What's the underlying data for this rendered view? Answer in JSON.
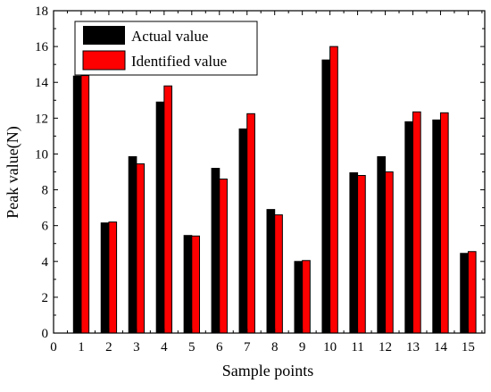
{
  "chart_data": {
    "type": "bar",
    "title": "",
    "xlabel": "Sample points",
    "ylabel": "Peak value(N)",
    "x_ticks": [
      "0",
      "1",
      "2",
      "3",
      "4",
      "5",
      "6",
      "7",
      "8",
      "9",
      "10",
      "11",
      "12",
      "13",
      "14",
      "15"
    ],
    "y_ticks": [
      "0",
      "2",
      "4",
      "6",
      "8",
      "10",
      "12",
      "14",
      "16",
      "18"
    ],
    "xlim": [
      0,
      15.6
    ],
    "ylim": [
      0,
      18
    ],
    "grid": false,
    "legend_position": "top-left",
    "categories": [
      1,
      2,
      3,
      4,
      5,
      6,
      7,
      8,
      9,
      10,
      11,
      12,
      13,
      14,
      15
    ],
    "series": [
      {
        "name": "Actual value",
        "color": "#000000",
        "values": [
          14.35,
          6.15,
          9.85,
          12.9,
          5.45,
          9.2,
          11.4,
          6.9,
          4.0,
          15.25,
          8.95,
          9.85,
          11.8,
          11.9,
          4.45
        ]
      },
      {
        "name": "Identified value",
        "color": "#ff0000",
        "values": [
          14.38,
          6.2,
          9.45,
          13.8,
          5.42,
          8.6,
          12.25,
          6.6,
          4.05,
          16.0,
          8.8,
          9.0,
          12.35,
          12.3,
          4.55
        ]
      }
    ]
  }
}
